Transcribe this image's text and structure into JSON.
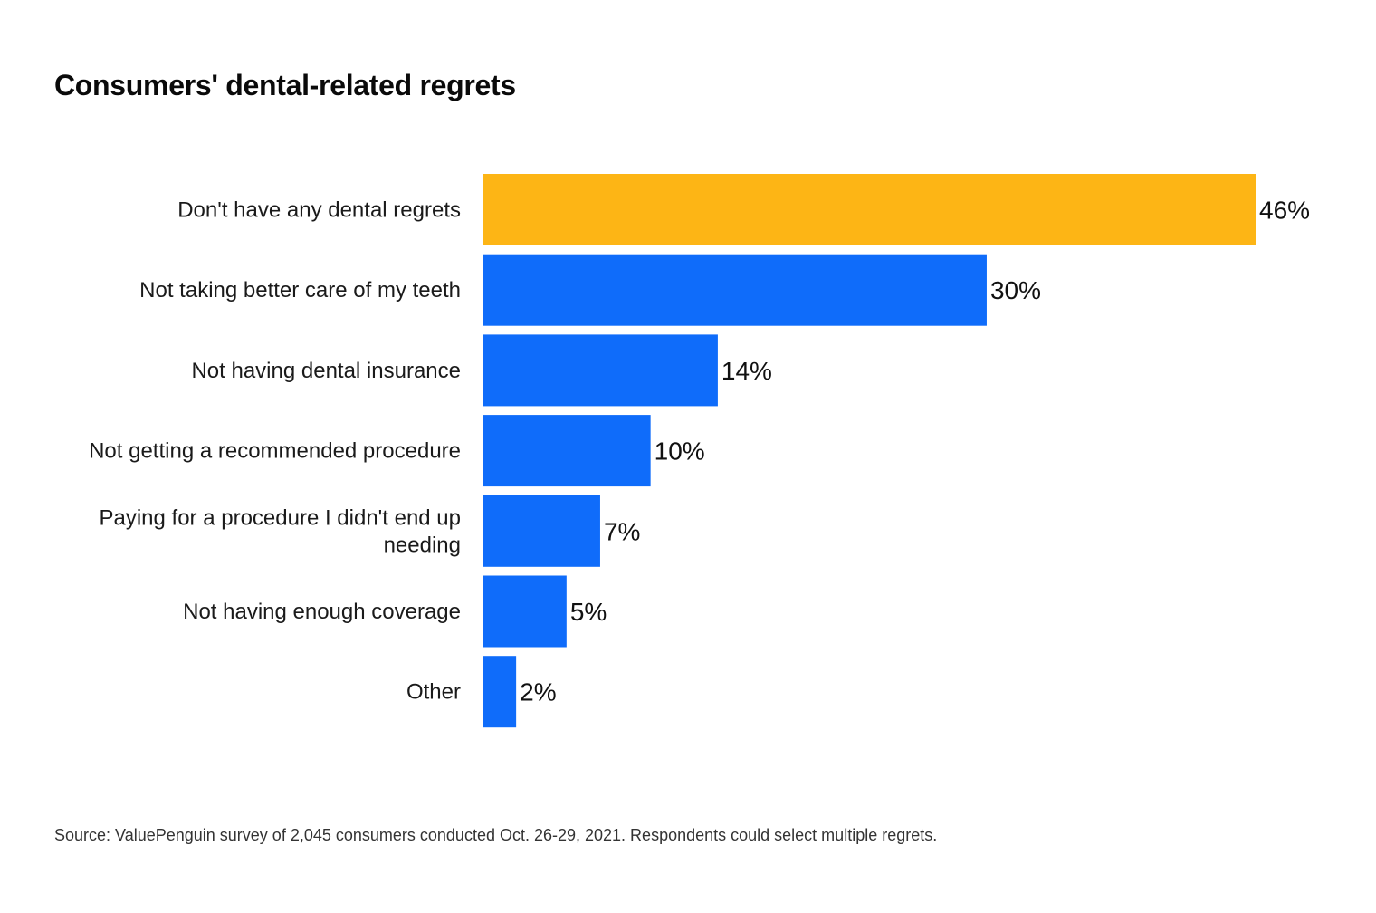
{
  "chart_data": {
    "type": "bar",
    "orientation": "horizontal",
    "title": "Consumers' dental-related regrets",
    "categories": [
      "Don't have any dental regrets",
      "Not taking better care of my teeth",
      "Not having dental insurance",
      "Not getting a recommended procedure",
      "Paying for a procedure I didn't end up needing",
      "Not having enough coverage",
      "Other"
    ],
    "category_lines": [
      [
        "Don't have any dental regrets"
      ],
      [
        "Not taking better care of my teeth"
      ],
      [
        "Not having dental insurance"
      ],
      [
        "Not getting a recommended procedure"
      ],
      [
        "Paying for a procedure I didn't end up",
        "needing"
      ],
      [
        "Not having enough coverage"
      ],
      [
        "Other"
      ]
    ],
    "values": [
      46,
      30,
      14,
      10,
      7,
      5,
      2
    ],
    "value_labels": [
      "46%",
      "30%",
      "14%",
      "10%",
      "7%",
      "5%",
      "2%"
    ],
    "highlight_index": 0,
    "xlabel": "",
    "ylabel": "",
    "xlim": [
      0,
      46
    ],
    "grid": false,
    "legend": "none",
    "colors": {
      "highlight": "#FDB515",
      "default": "#0F6CFA"
    },
    "source": "Source: ValuePenguin survey of 2,045 consumers conducted Oct. 26-29, 2021. Respondents could select multiple regrets."
  }
}
